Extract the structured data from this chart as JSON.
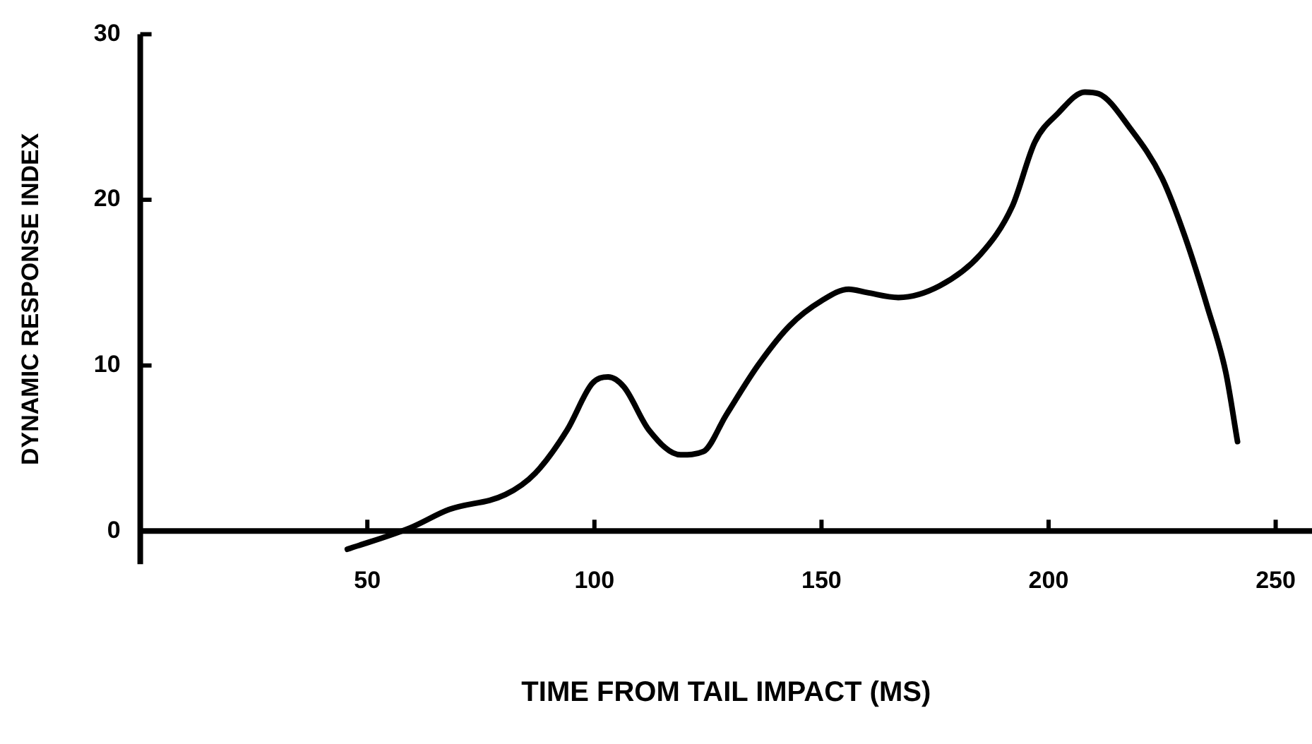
{
  "chart_data": {
    "type": "line",
    "xlabel": "TIME FROM TAIL IMPACT (MS)",
    "ylabel": "DYNAMIC RESPONSE INDEX",
    "x": [
      45.6,
      59.5,
      68,
      80.4,
      87,
      94,
      99.5,
      103,
      106.5,
      112,
      119,
      124,
      129,
      136,
      143,
      150,
      156,
      160,
      167,
      176,
      185,
      192,
      197,
      202,
      208,
      211,
      218,
      225,
      230,
      235,
      239,
      241.6
    ],
    "series": [
      {
        "color": "#000000",
        "values": [
          -1.1,
          0.2,
          1.3,
          2.2,
          3.5,
          6.1,
          8.9,
          9.3,
          8.7,
          6.1,
          4.6,
          4.8,
          7.0,
          10.0,
          12.4,
          13.9,
          14.6,
          14.4,
          14.1,
          14.8,
          16.7,
          19.6,
          23.5,
          25.2,
          26.5,
          26.4,
          24.3,
          21.3,
          17.8,
          13.5,
          9.6,
          5.4
        ]
      }
    ],
    "xlim": [
      0,
      258
    ],
    "xticks": [
      50,
      100,
      150,
      200,
      250
    ],
    "ylim": [
      -2,
      30
    ],
    "yticks": [
      0,
      10,
      20,
      30
    ],
    "grid": false,
    "legend": false,
    "marker": "none",
    "line_style": "solid"
  }
}
